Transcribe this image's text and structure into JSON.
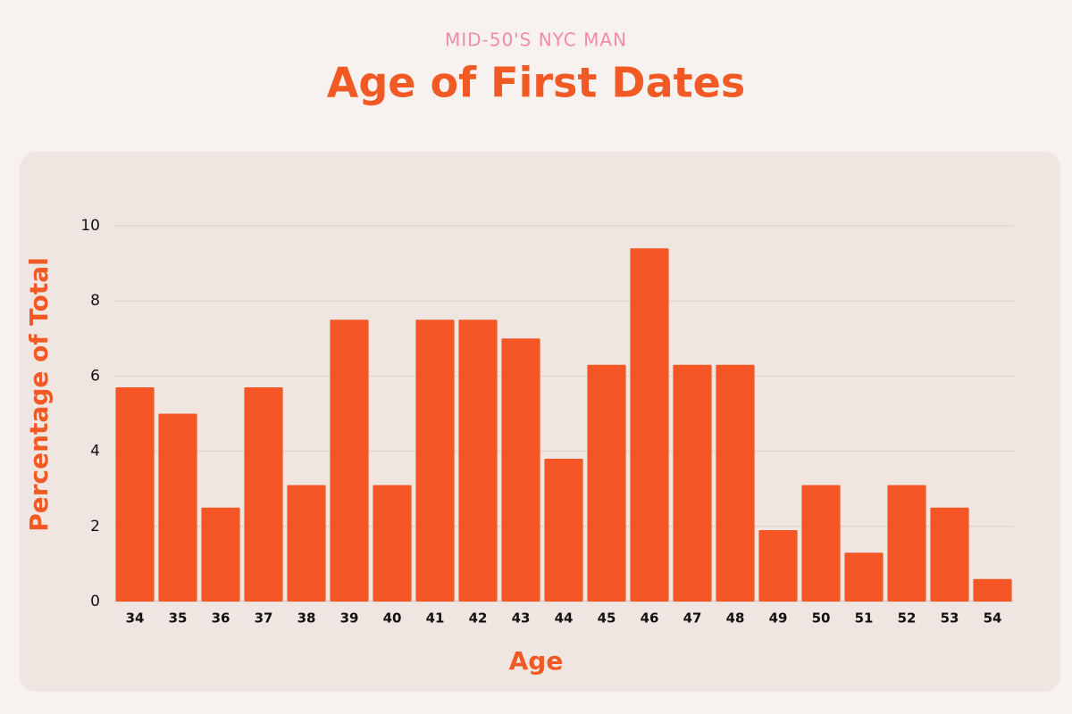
{
  "chart_data": {
    "type": "bar",
    "subtitle": "MID-50'S NYC MAN",
    "title": "Age of First Dates",
    "x_label": "Age",
    "y_label": "Percentage of Total",
    "categories": [
      "34",
      "35",
      "36",
      "37",
      "38",
      "39",
      "40",
      "41",
      "42",
      "43",
      "44",
      "45",
      "46",
      "47",
      "48",
      "49",
      "50",
      "51",
      "52",
      "53",
      "54"
    ],
    "values": [
      5.7,
      5.0,
      2.5,
      5.7,
      3.1,
      7.5,
      3.1,
      7.5,
      7.5,
      7.0,
      3.8,
      6.3,
      9.4,
      6.3,
      6.3,
      1.9,
      3.1,
      1.3,
      3.1,
      2.5,
      0.6
    ],
    "color": "#f45725",
    "ylim": [
      0,
      10
    ],
    "yticks": [
      0,
      2,
      4,
      6,
      8,
      10
    ],
    "grid": true
  }
}
